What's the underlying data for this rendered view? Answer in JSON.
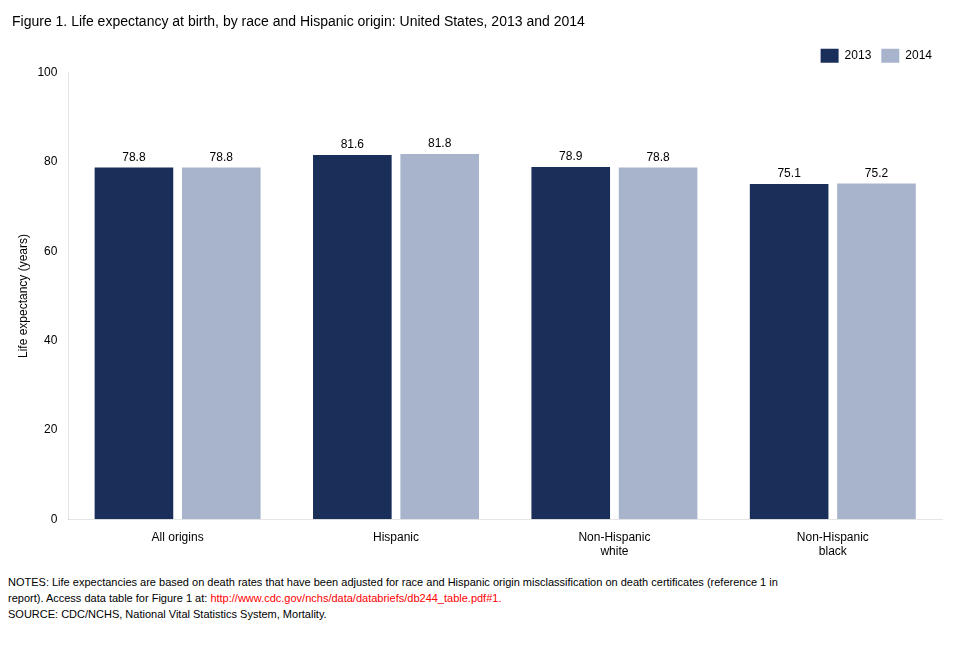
{
  "chart_data": {
    "type": "bar",
    "title": "Figure 1. Life expectancy at birth, by race and Hispanic origin: United States, 2013 and 2014",
    "categories": [
      "All origins",
      "Hispanic",
      "Non-Hispanic\nwhite",
      "Non-Hispanic\nblack"
    ],
    "series": [
      {
        "name": "2013",
        "color": "#1a2e5a",
        "values": [
          78.8,
          81.6,
          78.9,
          75.1
        ]
      },
      {
        "name": "2014",
        "color": "#a8b4cc",
        "values": [
          78.8,
          81.8,
          78.8,
          75.2
        ]
      }
    ],
    "ylabel": "Life expectancy (years)",
    "ylim": [
      0,
      100
    ],
    "yticks": [
      0,
      20,
      40,
      60,
      80,
      100
    ],
    "grid": false,
    "legend": "upper right",
    "data_labels": true,
    "annotations": [
      [
        {
          "text": "NOTES: Life expectancies are based on death rates that have been adjusted for race and Hispanic origin misclassification on death certificates (reference 1 in"
        }
      ],
      [
        {
          "text": "report). Access data table for Figure 1 at: "
        },
        {
          "text": "http://www.cdc.gov/nchs/data/databriefs/db244_table.pdf#1.",
          "color": "red"
        }
      ],
      [
        {
          "text": "SOURCE: CDC/NCHS, National Vital Statistics System, Mortality."
        }
      ]
    ]
  }
}
